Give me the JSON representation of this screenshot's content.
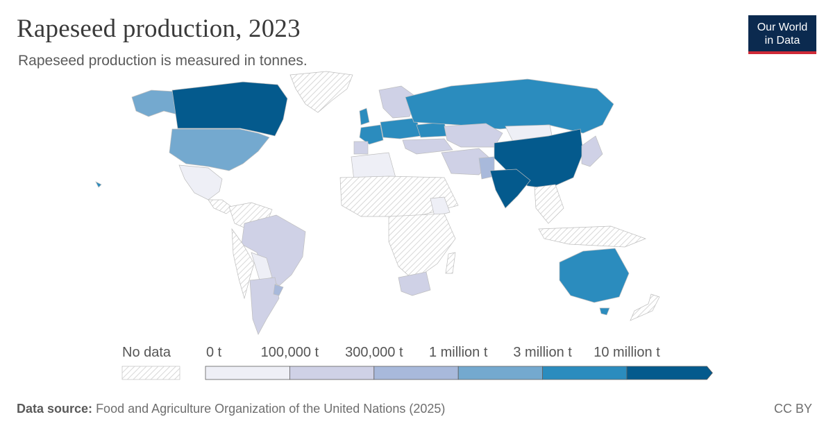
{
  "header": {
    "title": "Rapeseed production, 2023",
    "subtitle": "Rapeseed production is measured in tonnes."
  },
  "logo": {
    "line1": "Our World",
    "line2": "in Data"
  },
  "legend": {
    "no_data_label": "No data",
    "bins": [
      {
        "label": "0 t",
        "color": "#eeeff6"
      },
      {
        "label": "100,000 t",
        "color": "#cfd1e6"
      },
      {
        "label": "300,000 t",
        "color": "#a8b9db"
      },
      {
        "label": "1 million t",
        "color": "#74a9cf"
      },
      {
        "label": "3 million t",
        "color": "#2b8cbe"
      },
      {
        "label": "10 million t",
        "color": "#045a8d"
      }
    ]
  },
  "colors": {
    "bin_0_100k": "#eeeff6",
    "bin_100k_300k": "#cfd1e6",
    "bin_300k_1m": "#a8b9db",
    "bin_1m_3m": "#74a9cf",
    "bin_3m_10m": "#2b8cbe",
    "bin_10m_plus": "#045a8d",
    "no_data_hatch": "#d7d7d7"
  },
  "footer": {
    "source_label": "Data source:",
    "source_text": "Food and Agriculture Organization of the United Nations (2025)",
    "license": "CC BY"
  }
}
